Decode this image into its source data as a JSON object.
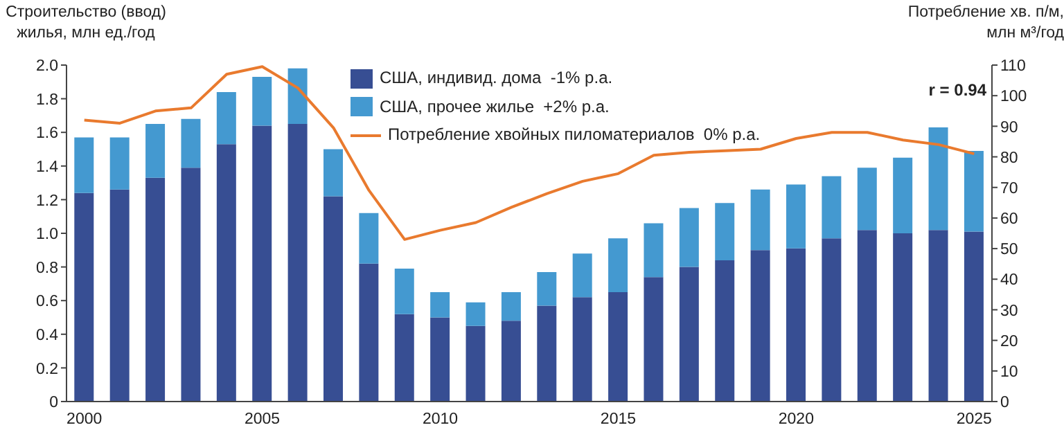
{
  "chart_data": {
    "type": "bar",
    "stacked": true,
    "ylabel": "Строительство (ввод) жилья, млн ед./год",
    "y2label": "Потребление хв. п/м, млн м³/год",
    "annotations": [
      "r = 0.94"
    ],
    "categories": [
      "2000",
      null,
      null,
      null,
      null,
      "2005",
      null,
      null,
      null,
      null,
      "2010",
      null,
      null,
      null,
      null,
      "2015",
      null,
      null,
      null,
      null,
      "2020",
      null,
      null,
      null,
      null,
      "2025"
    ],
    "series": [
      {
        "name": "США, индивид. дома  -1% р.а.",
        "color": "#374e93",
        "values": [
          1.24,
          1.26,
          1.33,
          1.39,
          1.53,
          1.64,
          1.65,
          1.22,
          0.82,
          0.52,
          0.5,
          0.45,
          0.48,
          0.57,
          0.62,
          0.65,
          0.74,
          0.8,
          0.84,
          0.9,
          0.91,
          0.97,
          1.02,
          1.0,
          1.02,
          1.01
        ]
      },
      {
        "name": "США, прочее жилье  +2% р.а.",
        "color": "#4499d0",
        "values": [
          0.33,
          0.31,
          0.32,
          0.29,
          0.31,
          0.29,
          0.33,
          0.28,
          0.3,
          0.27,
          0.15,
          0.14,
          0.17,
          0.2,
          0.26,
          0.32,
          0.32,
          0.35,
          0.34,
          0.36,
          0.38,
          0.37,
          0.37,
          0.45,
          0.61,
          0.48
        ]
      },
      {
        "name": "Потребление хвойных пиломатериалов  0% р.а.",
        "type": "line",
        "axis": "y2",
        "color": "#e97a2e",
        "values": [
          92,
          91,
          95,
          96,
          107,
          109.5,
          102.5,
          89.5,
          69,
          53,
          56,
          58.5,
          63.5,
          68,
          72,
          74.5,
          80.5,
          81.5,
          82,
          82.5,
          86,
          88,
          88,
          85.5,
          84,
          81
        ]
      }
    ],
    "ylim": [
      0,
      2
    ],
    "yticks": [
      0,
      0.2,
      0.4,
      0.6,
      0.8,
      {
        "value": 1,
        "label": "1.0"
      },
      1.2,
      1.4,
      1.6,
      1.8,
      {
        "value": 2,
        "label": "2.0"
      }
    ],
    "y2lim": [
      0,
      110
    ],
    "y2ticks": [
      0,
      10,
      20,
      30,
      40,
      50,
      60,
      70,
      80,
      90,
      100,
      110
    ],
    "legend": "top right",
    "grid": false
  }
}
